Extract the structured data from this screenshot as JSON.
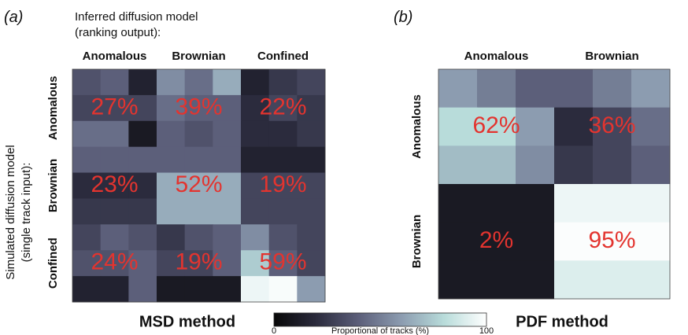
{
  "chart_data": [
    {
      "type": "heatmap",
      "panel": "(a)",
      "title": "MSD method",
      "xlabel": [
        "Inferred diffusion model",
        "(ranking output):"
      ],
      "ylabel": [
        "Simulated diffusion model",
        "(single track input):"
      ],
      "x_categories": [
        "Anomalous",
        "Brownian",
        "Confined"
      ],
      "y_categories": [
        "Anomalous",
        "Brownian",
        "Confined"
      ],
      "values": [
        [
          27,
          39,
          22
        ],
        [
          23,
          52,
          19
        ],
        [
          24,
          19,
          59
        ]
      ],
      "value_labels": [
        [
          "27%",
          "39%",
          "22%"
        ],
        [
          "23%",
          "52%",
          "19%"
        ],
        [
          "24%",
          "19%",
          "59%"
        ]
      ],
      "cells": [
        [
          35,
          40,
          15,
          55,
          45,
          65,
          15,
          25,
          30
        ],
        [
          30,
          30,
          30,
          45,
          40,
          40,
          20,
          30,
          25
        ],
        [
          45,
          45,
          10,
          40,
          35,
          40,
          20,
          20,
          25
        ],
        [
          40,
          40,
          40,
          40,
          40,
          40,
          15,
          15,
          15
        ],
        [
          20,
          20,
          20,
          65,
          65,
          65,
          30,
          30,
          30
        ],
        [
          25,
          25,
          25,
          65,
          65,
          65,
          30,
          30,
          30
        ],
        [
          30,
          40,
          35,
          25,
          35,
          40,
          55,
          35,
          30
        ],
        [
          35,
          35,
          40,
          30,
          30,
          40,
          75,
          40,
          30
        ],
        [
          15,
          15,
          40,
          10,
          10,
          10,
          95,
          98,
          60
        ]
      ]
    },
    {
      "type": "heatmap",
      "panel": "(b)",
      "title": "PDF method",
      "x_categories": [
        "Anomalous",
        "Brownian"
      ],
      "y_categories": [
        "Anomalous",
        "Brownian"
      ],
      "values": [
        [
          62,
          36
        ],
        [
          2,
          95
        ]
      ],
      "value_labels": [
        [
          "62%",
          "36%"
        ],
        [
          "2%",
          "95%"
        ]
      ],
      "cells": [
        [
          60,
          50,
          40,
          40,
          50,
          60
        ],
        [
          80,
          80,
          60,
          20,
          30,
          45
        ],
        [
          70,
          70,
          55,
          25,
          30,
          40
        ],
        [
          10,
          10,
          10,
          95,
          95,
          95
        ],
        [
          10,
          10,
          10,
          99,
          99,
          99
        ],
        [
          10,
          10,
          10,
          90,
          90,
          90
        ]
      ]
    }
  ],
  "colorbar": {
    "label": "Proportional of tracks (%)",
    "clim": [
      0,
      100
    ],
    "cticks": [
      0,
      100
    ],
    "colors": [
      "#080808",
      "#2b2b3d",
      "#5c5f7a",
      "#8c9cb0",
      "#b8dcda",
      "#ffffff"
    ]
  }
}
